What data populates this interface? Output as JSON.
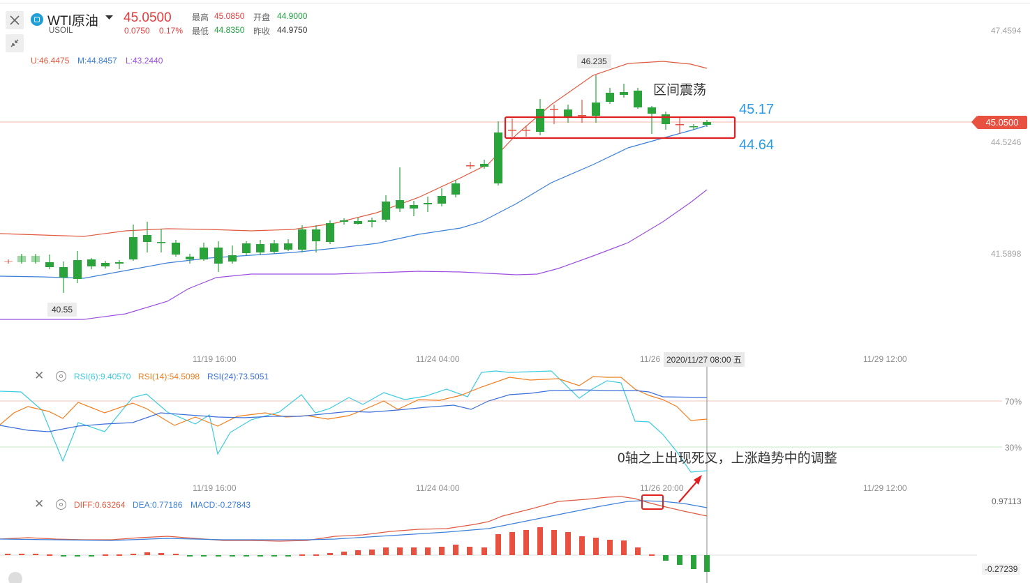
{
  "header": {
    "symbol_name": "WTI原油",
    "symbol_code": "USOIL",
    "price": "45.0500",
    "change": "0.0750",
    "change_pct": "0.17%",
    "high_label": "最高",
    "high_value": "45.0850",
    "low_label": "最低",
    "low_value": "44.8350",
    "open_label": "开盘",
    "open_value": "44.9000",
    "prev_label": "昨收",
    "prev_value": "44.9750"
  },
  "boll": {
    "upper": "U:46.4475",
    "middle": "M:44.8457",
    "lower": "L:43.2440"
  },
  "price_axis": {
    "ticks": [
      "47.4594",
      "44.5246",
      "41.5898"
    ],
    "current": "45.0500"
  },
  "callouts": {
    "high": "46.235",
    "low": "40.55"
  },
  "annotations": {
    "range": "区间震荡",
    "level_high": "45.17",
    "level_low": "44.64",
    "macd_note": "0轴之上出现死叉，上涨趋势中的调整"
  },
  "time_axis": {
    "main": [
      "11/19 16:00",
      "11/24 04:00",
      "11/26",
      "11/29 12:00"
    ],
    "rsi": [
      "11/19 16:00",
      "11/24 04:00",
      "11/26 20:00",
      "11/29 12:00"
    ],
    "crosshair": "2020/11/27 08:00 五"
  },
  "rsi": {
    "rsi6": "RSI(6):9.40570",
    "rsi14": "RSI(14):54.5098",
    "rsi24": "RSI(24):73.5051",
    "level70": "70%",
    "level30": "30%"
  },
  "macd": {
    "diff": "DIFF:0.63264",
    "dea": "DEA:0.77186",
    "macd": "MACD:-0.27843",
    "axis_top": "0.97113",
    "axis_bottom": "-0.27239"
  },
  "colors": {
    "up": "#e8513f",
    "down": "#2aa33a",
    "boll_upper": "#e05a40",
    "boll_mid": "#3b7fd9",
    "boll_lower": "#9b4fe0",
    "rsi6": "#3ccbe0",
    "rsi14": "#f07d1e",
    "rsi24": "#3b6fd9"
  },
  "icons": [
    "close-icon",
    "shrink-icon",
    "dropdown-icon",
    "settings-icon"
  ]
}
